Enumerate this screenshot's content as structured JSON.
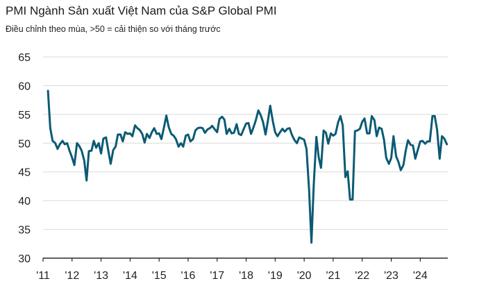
{
  "title": "PMI Ngành Sản xuất Việt Nam của S&P Global PMI",
  "subtitle": "Điều chỉnh theo mùa, >50 = cải thiện so với tháng trước",
  "colors": {
    "line": "#0b5a73",
    "grid": "#d9d9d9",
    "axis": "#000000"
  },
  "chart_data": {
    "type": "line",
    "title": "PMI Ngành Sản xuất Việt Nam của S&P Global PMI",
    "subtitle": "Điều chỉnh theo mùa, >50 = cải thiện so với tháng trước",
    "xlabel": "",
    "ylabel": "",
    "ylim": [
      30,
      65
    ],
    "y_ticks": [
      30,
      35,
      40,
      45,
      50,
      55,
      60,
      65
    ],
    "x_ticks": [
      {
        "label": "'11",
        "x": 2011.0
      },
      {
        "label": "'12",
        "x": 2012.0
      },
      {
        "label": "'13",
        "x": 2013.0
      },
      {
        "label": "'14",
        "x": 2014.0
      },
      {
        "label": "'15",
        "x": 2015.0
      },
      {
        "label": "'16",
        "x": 2016.0
      },
      {
        "label": "'17",
        "x": 2017.0
      },
      {
        "label": "'18",
        "x": 2018.0
      },
      {
        "label": "'19",
        "x": 2019.0
      },
      {
        "label": "'20",
        "x": 2020.0
      },
      {
        "label": "'21",
        "x": 2021.0
      },
      {
        "label": "'22",
        "x": 2022.0
      },
      {
        "label": "'23",
        "x": 2023.0
      },
      {
        "label": "'24",
        "x": 2024.0
      }
    ],
    "xlim": [
      2011.0,
      2024.95
    ],
    "grid": "horizontal",
    "series": [
      {
        "name": "PMI",
        "points": [
          [
            2011.17,
            59.1
          ],
          [
            2011.25,
            52.6
          ],
          [
            2011.33,
            50.4
          ],
          [
            2011.42,
            50.0
          ],
          [
            2011.5,
            49.0
          ],
          [
            2011.58,
            49.8
          ],
          [
            2011.67,
            50.4
          ],
          [
            2011.75,
            49.8
          ],
          [
            2011.83,
            50.0
          ],
          [
            2011.92,
            48.6
          ],
          [
            2012.0,
            47.5
          ],
          [
            2012.08,
            46.2
          ],
          [
            2012.17,
            50.0
          ],
          [
            2012.25,
            49.5
          ],
          [
            2012.33,
            48.7
          ],
          [
            2012.42,
            47.0
          ],
          [
            2012.5,
            43.5
          ],
          [
            2012.58,
            48.6
          ],
          [
            2012.67,
            48.7
          ],
          [
            2012.75,
            50.4
          ],
          [
            2012.83,
            49.2
          ],
          [
            2012.92,
            50.0
          ],
          [
            2013.0,
            48.2
          ],
          [
            2013.08,
            50.8
          ],
          [
            2013.17,
            51.0
          ],
          [
            2013.25,
            48.7
          ],
          [
            2013.33,
            46.4
          ],
          [
            2013.42,
            48.8
          ],
          [
            2013.5,
            49.4
          ],
          [
            2013.58,
            51.5
          ],
          [
            2013.67,
            51.5
          ],
          [
            2013.75,
            50.3
          ],
          [
            2013.83,
            51.9
          ],
          [
            2013.92,
            51.6
          ],
          [
            2014.0,
            51.7
          ],
          [
            2014.08,
            51.2
          ],
          [
            2014.17,
            53.1
          ],
          [
            2014.25,
            52.6
          ],
          [
            2014.33,
            52.3
          ],
          [
            2014.42,
            51.6
          ],
          [
            2014.5,
            50.1
          ],
          [
            2014.58,
            51.6
          ],
          [
            2014.67,
            50.9
          ],
          [
            2014.75,
            51.9
          ],
          [
            2014.83,
            52.6
          ],
          [
            2014.92,
            51.6
          ],
          [
            2015.0,
            51.7
          ],
          [
            2015.08,
            50.7
          ],
          [
            2015.17,
            52.8
          ],
          [
            2015.25,
            54.8
          ],
          [
            2015.33,
            52.8
          ],
          [
            2015.42,
            51.6
          ],
          [
            2015.5,
            51.3
          ],
          [
            2015.58,
            50.7
          ],
          [
            2015.67,
            49.4
          ],
          [
            2015.75,
            50.0
          ],
          [
            2015.83,
            49.4
          ],
          [
            2015.92,
            51.3
          ],
          [
            2016.0,
            51.5
          ],
          [
            2016.08,
            50.3
          ],
          [
            2016.17,
            50.7
          ],
          [
            2016.25,
            52.2
          ],
          [
            2016.33,
            52.6
          ],
          [
            2016.42,
            52.7
          ],
          [
            2016.5,
            52.6
          ],
          [
            2016.58,
            51.8
          ],
          [
            2016.67,
            52.4
          ],
          [
            2016.75,
            52.6
          ],
          [
            2016.83,
            53.0
          ],
          [
            2016.92,
            52.4
          ],
          [
            2017.0,
            51.9
          ],
          [
            2017.08,
            54.2
          ],
          [
            2017.17,
            54.6
          ],
          [
            2017.25,
            54.1
          ],
          [
            2017.33,
            51.6
          ],
          [
            2017.42,
            52.5
          ],
          [
            2017.5,
            51.7
          ],
          [
            2017.58,
            51.8
          ],
          [
            2017.67,
            53.3
          ],
          [
            2017.75,
            51.6
          ],
          [
            2017.83,
            51.4
          ],
          [
            2017.92,
            52.5
          ],
          [
            2018.0,
            53.4
          ],
          [
            2018.08,
            53.5
          ],
          [
            2018.17,
            51.6
          ],
          [
            2018.25,
            52.7
          ],
          [
            2018.33,
            53.9
          ],
          [
            2018.42,
            55.7
          ],
          [
            2018.5,
            54.9
          ],
          [
            2018.58,
            53.7
          ],
          [
            2018.67,
            51.5
          ],
          [
            2018.75,
            53.9
          ],
          [
            2018.83,
            56.5
          ],
          [
            2018.92,
            53.8
          ],
          [
            2019.0,
            51.9
          ],
          [
            2019.08,
            51.2
          ],
          [
            2019.17,
            51.9
          ],
          [
            2019.25,
            52.5
          ],
          [
            2019.33,
            52.0
          ],
          [
            2019.42,
            52.5
          ],
          [
            2019.5,
            52.6
          ],
          [
            2019.58,
            51.4
          ],
          [
            2019.67,
            50.5
          ],
          [
            2019.75,
            50.0
          ],
          [
            2019.83,
            51.0
          ],
          [
            2019.92,
            50.8
          ],
          [
            2020.0,
            50.6
          ],
          [
            2020.08,
            49.0
          ],
          [
            2020.17,
            41.9
          ],
          [
            2020.25,
            32.7
          ],
          [
            2020.33,
            42.7
          ],
          [
            2020.42,
            51.1
          ],
          [
            2020.5,
            47.6
          ],
          [
            2020.58,
            45.7
          ],
          [
            2020.67,
            52.2
          ],
          [
            2020.75,
            51.8
          ],
          [
            2020.83,
            49.9
          ],
          [
            2020.92,
            51.7
          ],
          [
            2021.0,
            51.3
          ],
          [
            2021.08,
            51.6
          ],
          [
            2021.17,
            53.6
          ],
          [
            2021.25,
            54.7
          ],
          [
            2021.33,
            53.1
          ],
          [
            2021.42,
            44.1
          ],
          [
            2021.5,
            45.1
          ],
          [
            2021.58,
            40.2
          ],
          [
            2021.67,
            40.2
          ],
          [
            2021.75,
            52.1
          ],
          [
            2021.83,
            52.2
          ],
          [
            2021.92,
            52.5
          ],
          [
            2022.0,
            53.7
          ],
          [
            2022.08,
            54.3
          ],
          [
            2022.17,
            51.7
          ],
          [
            2022.25,
            51.7
          ],
          [
            2022.33,
            54.7
          ],
          [
            2022.42,
            54.0
          ],
          [
            2022.5,
            51.2
          ],
          [
            2022.58,
            52.7
          ],
          [
            2022.67,
            52.5
          ],
          [
            2022.75,
            50.6
          ],
          [
            2022.83,
            47.4
          ],
          [
            2022.92,
            46.4
          ],
          [
            2023.0,
            47.4
          ],
          [
            2023.08,
            51.2
          ],
          [
            2023.17,
            47.7
          ],
          [
            2023.25,
            46.7
          ],
          [
            2023.33,
            45.3
          ],
          [
            2023.42,
            46.2
          ],
          [
            2023.5,
            48.7
          ],
          [
            2023.58,
            50.5
          ],
          [
            2023.67,
            49.7
          ],
          [
            2023.75,
            49.6
          ],
          [
            2023.83,
            47.3
          ],
          [
            2023.92,
            48.9
          ],
          [
            2024.0,
            50.3
          ],
          [
            2024.08,
            50.4
          ],
          [
            2024.17,
            49.9
          ],
          [
            2024.25,
            50.3
          ],
          [
            2024.33,
            50.3
          ],
          [
            2024.42,
            54.7
          ],
          [
            2024.5,
            54.7
          ],
          [
            2024.58,
            52.4
          ],
          [
            2024.67,
            47.3
          ],
          [
            2024.75,
            51.2
          ],
          [
            2024.83,
            50.8
          ],
          [
            2024.92,
            49.8
          ]
        ]
      }
    ]
  }
}
